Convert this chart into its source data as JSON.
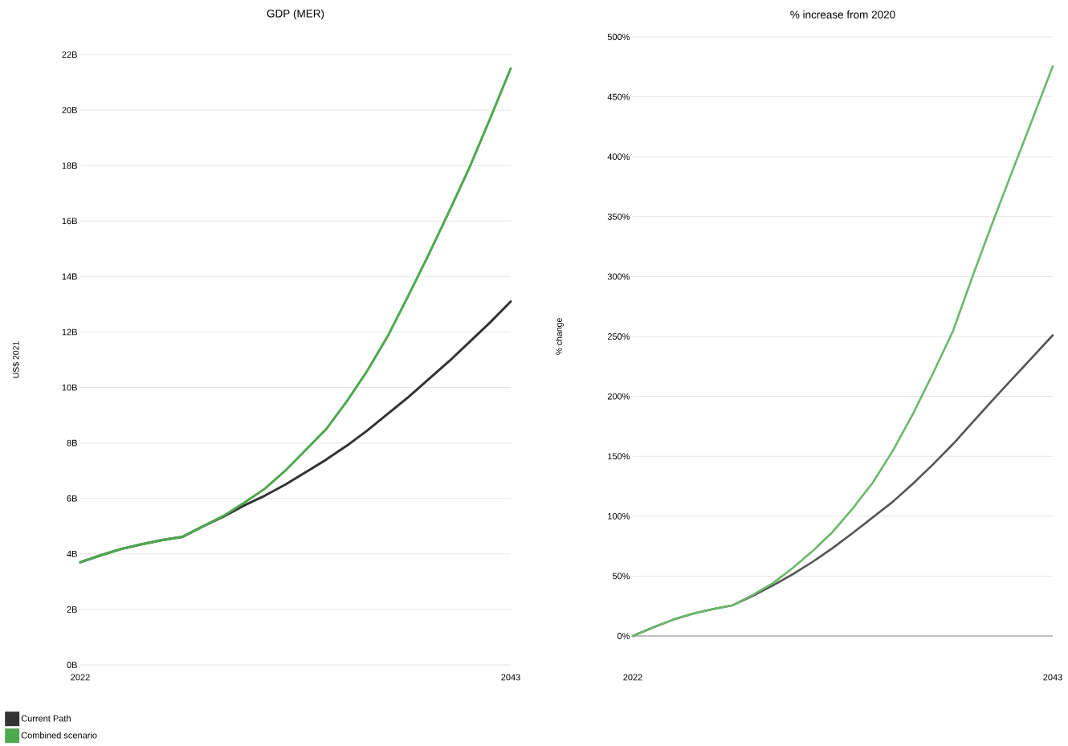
{
  "chart_data": [
    {
      "type": "line",
      "title": "GDP (MER)",
      "ylabel": "US$ 2021",
      "x": [
        2022,
        2023,
        2024,
        2025,
        2026,
        2027,
        2028,
        2029,
        2030,
        2031,
        2032,
        2033,
        2034,
        2035,
        2036,
        2037,
        2038,
        2039,
        2040,
        2041,
        2042,
        2043
      ],
      "series": [
        {
          "name": "Current Path",
          "color": "#333333",
          "values": [
            3.7,
            3.95,
            4.18,
            4.35,
            4.5,
            4.62,
            5.0,
            5.35,
            5.75,
            6.1,
            6.5,
            6.95,
            7.4,
            7.9,
            8.45,
            9.05,
            9.65,
            10.3,
            10.95,
            11.65,
            12.35,
            13.1
          ]
        },
        {
          "name": "Combined scenario",
          "color": "#4fa84f",
          "values": [
            3.7,
            3.95,
            4.18,
            4.35,
            4.5,
            4.62,
            5.0,
            5.38,
            5.85,
            6.35,
            7.0,
            7.75,
            8.5,
            9.5,
            10.6,
            11.85,
            13.3,
            14.8,
            16.35,
            17.95,
            19.7,
            21.5
          ]
        }
      ],
      "xlim": [
        2022,
        2043
      ],
      "xticks": [
        2022,
        2043
      ],
      "ylim": [
        0,
        22
      ],
      "yticks": [
        {
          "value": 0,
          "label": "0B"
        },
        {
          "value": 2,
          "label": "2B"
        },
        {
          "value": 4,
          "label": "4B"
        },
        {
          "value": 6,
          "label": "6B"
        },
        {
          "value": 8,
          "label": "8B"
        },
        {
          "value": 10,
          "label": "10B"
        },
        {
          "value": 12,
          "label": "12B"
        },
        {
          "value": 14,
          "label": "14B"
        },
        {
          "value": 16,
          "label": "16B"
        },
        {
          "value": 18,
          "label": "18B"
        },
        {
          "value": 20,
          "label": "20B"
        },
        {
          "value": 22,
          "label": "22B"
        }
      ],
      "grid": "y",
      "legend": "bottom",
      "marker": "none",
      "line_style": "solid"
    },
    {
      "type": "line",
      "title": "% increase from 2020",
      "ylabel": "% change",
      "x": [
        2022,
        2023,
        2024,
        2025,
        2026,
        2027,
        2028,
        2029,
        2030,
        2031,
        2032,
        2033,
        2034,
        2035,
        2036,
        2037,
        2038,
        2039,
        2040,
        2041,
        2042,
        2043
      ],
      "series": [
        {
          "color": "#555555",
          "values": [
            0,
            7,
            13.5,
            18.6,
            22.5,
            25.7,
            33.5,
            42.2,
            51.5,
            62,
            73.5,
            86,
            99,
            112,
            127,
            143,
            160,
            178.5,
            197,
            215,
            233,
            251
          ]
        },
        {
          "color": "#6bb86b",
          "values": [
            0,
            7,
            13.5,
            18.6,
            22.5,
            25.7,
            34.3,
            44,
            56.8,
            71,
            87,
            106.5,
            128,
            154.6,
            185,
            218.8,
            254,
            300.6,
            345.5,
            389,
            432,
            475.5
          ]
        }
      ],
      "xlim": [
        2022,
        2043
      ],
      "xticks": [
        2022,
        2043
      ],
      "ylim": [
        0,
        500
      ],
      "yticks": [
        {
          "value": 0,
          "label": "0%"
        },
        {
          "value": 50,
          "label": "50%"
        },
        {
          "value": 100,
          "label": "100%"
        },
        {
          "value": 150,
          "label": "150%"
        },
        {
          "value": 200,
          "label": "200%"
        },
        {
          "value": 250,
          "label": "250%"
        },
        {
          "value": 300,
          "label": "300%"
        },
        {
          "value": 350,
          "label": "350%"
        },
        {
          "value": 400,
          "label": "400%"
        },
        {
          "value": 450,
          "label": "450%"
        },
        {
          "value": 500,
          "label": "500%"
        }
      ],
      "ref_lines": [
        {
          "axis": "y",
          "value": 0,
          "color": "#8c8c8c"
        }
      ],
      "grid": "y",
      "marker": "none",
      "line_style": "solid"
    }
  ]
}
